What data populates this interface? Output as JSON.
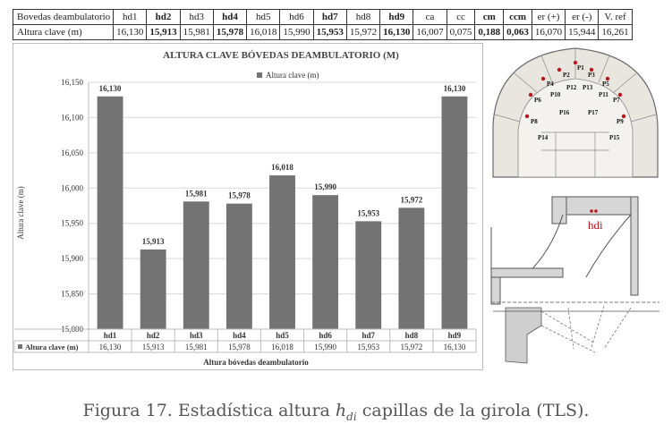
{
  "table": {
    "header": [
      "Bovedas deambulatorio",
      "hd1",
      "hd2",
      "hd3",
      "hd4",
      "hd5",
      "hd6",
      "hd7",
      "hd8",
      "hd9",
      "ca",
      "cc",
      "cm",
      "ccm",
      "er (+)",
      "er (-)",
      "V. ref"
    ],
    "row": [
      "Altura clave (m)",
      "16,130",
      "15,913",
      "15,981",
      "15,978",
      "16,018",
      "15,990",
      "15,953",
      "15,972",
      "16,130",
      "16,007",
      "0,075",
      "0,188",
      "0,063",
      "16,070",
      "15,944",
      "16,261"
    ],
    "bold_columns": [
      2,
      4,
      7,
      9,
      12,
      13
    ]
  },
  "chart_data": {
    "type": "bar",
    "title": "ALTURA CLAVE BÓVEDAS DEAMBULATORIO (M)",
    "ylabel": "Altura clave (m)",
    "xlabel": "Altura bóvedas deambulatorio",
    "categories": [
      "hd1",
      "hd2",
      "hd3",
      "hd4",
      "hd5",
      "hd6",
      "hd7",
      "hd8",
      "hd9"
    ],
    "series": [
      {
        "name": "Altura clave (m)",
        "values": [
          16.13,
          15.913,
          15.981,
          15.978,
          16.018,
          15.99,
          15.953,
          15.972,
          16.13
        ]
      }
    ],
    "value_labels": [
      "16,130",
      "15,913",
      "15,981",
      "15,978",
      "16,018",
      "15,990",
      "15,953",
      "15,972",
      "16,130"
    ],
    "ylim": [
      15.8,
      16.15
    ],
    "yticks": [
      15.8,
      15.85,
      15.9,
      15.95,
      16.0,
      16.05,
      16.1,
      16.15
    ],
    "ytick_labels": [
      "15,800",
      "15,850",
      "15,900",
      "15,950",
      "16,000",
      "16,050",
      "16,100",
      "16,150"
    ],
    "grid": true,
    "legend_placement": "top-center",
    "bar_color": "#737373",
    "data_table": true
  },
  "plan_labels": [
    "P1",
    "P2",
    "P3",
    "P4",
    "P5",
    "P6",
    "P7",
    "P8",
    "P9",
    "P10",
    "P11",
    "P12",
    "P13",
    "P14",
    "P15",
    "P16",
    "P17"
  ],
  "section_label": "hdi",
  "caption": {
    "prefix": "Figura 17. Estadística altura ",
    "var": "h",
    "sub": "di",
    "suffix": " capillas de la girola (TLS)."
  },
  "colors": {
    "accent_red": "#c0141c",
    "bar": "#737373"
  }
}
